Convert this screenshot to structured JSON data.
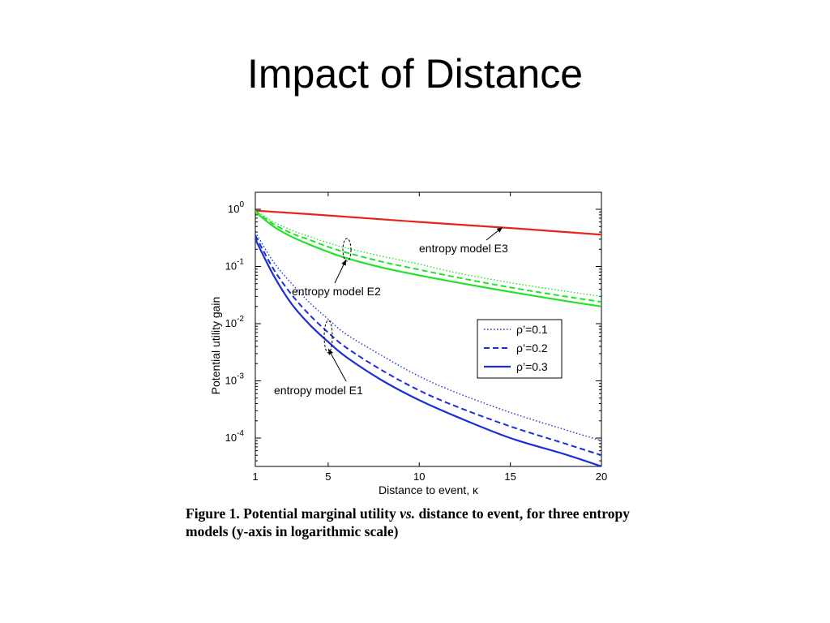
{
  "slide": {
    "title": "Impact of Distance"
  },
  "caption": {
    "prefix": "Figure 1. Potential marginal utility ",
    "vs": "vs.",
    "suffix": " distance to event, for three entropy models (y-axis in logarithmic scale)"
  },
  "chart_data": {
    "type": "line",
    "xlabel": "Distance to event, κ",
    "ylabel": "Potential utility gain",
    "xlim": [
      1,
      20
    ],
    "ylim": [
      4e-05,
      1.5
    ],
    "yscale": "log",
    "x_ticks": [
      1,
      5,
      10,
      15,
      20
    ],
    "y_ticks": [
      {
        "value": 1,
        "base": "10",
        "exp": "0"
      },
      {
        "value": 0.1,
        "base": "10",
        "exp": "-1"
      },
      {
        "value": 0.01,
        "base": "10",
        "exp": "-2"
      },
      {
        "value": 0.001,
        "base": "10",
        "exp": "-3"
      },
      {
        "value": 0.0001,
        "base": "10",
        "exp": "-4"
      }
    ],
    "legend": {
      "position": "right-middle",
      "entries": [
        {
          "label": "ρ’=0.1",
          "style": "dotted"
        },
        {
          "label": "ρ’=0.2",
          "style": "dashed"
        },
        {
          "label": "ρ’=0.3",
          "style": "solid"
        }
      ]
    },
    "annotations": {
      "e3": "entropy model E3",
      "e2": "entropy model E2",
      "e1": "entropy model E1"
    },
    "colors": {
      "E3": "#e8231c",
      "E2": "#22e22a",
      "E1": "#1c2fd6"
    },
    "series": [
      {
        "group": "E3",
        "style": "solid",
        "x": [
          1,
          5,
          10,
          15,
          20
        ],
        "y": [
          0.95,
          0.78,
          0.6,
          0.47,
          0.36
        ]
      },
      {
        "group": "E2",
        "style": "dotted",
        "x": [
          1,
          2,
          3,
          4,
          5,
          6,
          8,
          10,
          12,
          15,
          18,
          20
        ],
        "y": [
          0.95,
          0.6,
          0.43,
          0.33,
          0.26,
          0.21,
          0.15,
          0.11,
          0.078,
          0.052,
          0.037,
          0.03
        ]
      },
      {
        "group": "E2",
        "style": "dashed",
        "x": [
          1,
          2,
          3,
          4,
          5,
          6,
          8,
          10,
          12,
          15,
          18,
          20
        ],
        "y": [
          0.93,
          0.55,
          0.38,
          0.29,
          0.22,
          0.175,
          0.12,
          0.088,
          0.065,
          0.043,
          0.03,
          0.024
        ]
      },
      {
        "group": "E2",
        "style": "solid",
        "x": [
          1,
          2,
          3,
          4,
          5,
          6,
          8,
          10,
          12,
          15,
          18,
          20
        ],
        "y": [
          0.9,
          0.5,
          0.33,
          0.24,
          0.18,
          0.14,
          0.095,
          0.07,
          0.053,
          0.036,
          0.025,
          0.02
        ]
      },
      {
        "group": "E1",
        "style": "dotted",
        "x": [
          1,
          2,
          3,
          4,
          5,
          6,
          8,
          10,
          12,
          15,
          18,
          20
        ],
        "y": [
          0.4,
          0.12,
          0.05,
          0.023,
          0.012,
          0.0065,
          0.0027,
          0.0012,
          0.00063,
          0.00028,
          0.00014,
          9e-05
        ]
      },
      {
        "group": "E1",
        "style": "dashed",
        "x": [
          1,
          2,
          3,
          4,
          5,
          6,
          8,
          10,
          12,
          15,
          18,
          20
        ],
        "y": [
          0.35,
          0.09,
          0.032,
          0.014,
          0.007,
          0.0038,
          0.0015,
          0.00068,
          0.00036,
          0.00016,
          8e-05,
          5e-05
        ]
      },
      {
        "group": "E1",
        "style": "solid",
        "x": [
          1,
          2,
          3,
          4,
          5,
          6,
          8,
          10,
          12,
          15,
          18,
          20
        ],
        "y": [
          0.3,
          0.07,
          0.022,
          0.0095,
          0.0048,
          0.0026,
          0.001,
          0.00046,
          0.00024,
          0.0001,
          5.2e-05,
          3.2e-05
        ]
      }
    ]
  }
}
